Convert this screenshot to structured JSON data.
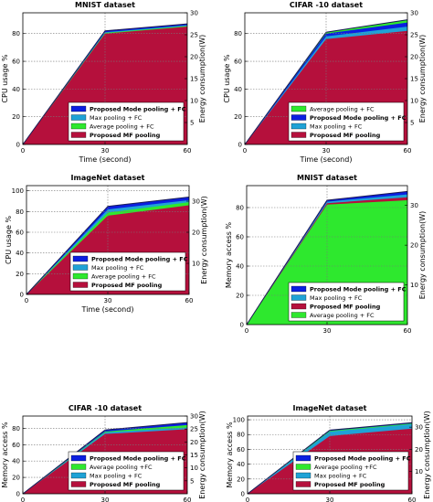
{
  "colors": {
    "proposed_mf": "#b5103c",
    "max_pool": "#1fa2d6",
    "avg_pool": "#2ee82e",
    "proposed_mode": "#0b1fe0",
    "outline": "#1a1a55"
  },
  "chart_data": [
    {
      "type": "area",
      "title": "MNIST dataset",
      "xlabel": "Time (second)",
      "ylabel": "CPU usage %",
      "y2label": "Energy consumption(W)",
      "x": [
        0,
        30,
        60
      ],
      "xticks": [
        "0",
        "30",
        "60"
      ],
      "ylim": [
        0,
        95
      ],
      "yticks": [
        0,
        20,
        40,
        60,
        80
      ],
      "y2lim": [
        0,
        30
      ],
      "y2ticks": [
        5,
        10,
        15,
        20,
        25,
        30
      ],
      "grid": true,
      "legend_position": "lower-right",
      "legend": [
        {
          "label": "Proposed Mode pooling + FC",
          "color": "proposed_mode",
          "bold": true
        },
        {
          "label": "Max pooling + FC",
          "color": "max_pool",
          "bold": false
        },
        {
          "label": "Average pooling + FC",
          "color": "avg_pool",
          "bold": false
        },
        {
          "label": "Proposed MF pooling",
          "color": "proposed_mf",
          "bold": true
        }
      ],
      "series": [
        {
          "name": "Proposed Mode pooling + FC",
          "color": "proposed_mode",
          "values": [
            0,
            82,
            87
          ]
        },
        {
          "name": "Max pooling + FC",
          "color": "max_pool",
          "values": [
            0,
            81,
            86
          ]
        },
        {
          "name": "Average pooling + FC",
          "color": "avg_pool",
          "values": [
            0,
            80.5,
            85.5
          ]
        },
        {
          "name": "Proposed MF pooling",
          "color": "proposed_mf",
          "values": [
            0,
            80,
            85
          ]
        }
      ]
    },
    {
      "type": "area",
      "title": "CIFAR -10 dataset",
      "xlabel": "Time (second)",
      "ylabel": "CPU usage %",
      "y2label": "Energy consumption(W)",
      "x": [
        0,
        30,
        60
      ],
      "xticks": [
        "0",
        "30",
        "60"
      ],
      "ylim": [
        0,
        95
      ],
      "yticks": [
        0,
        20,
        40,
        60,
        80
      ],
      "y2lim": [
        0,
        30
      ],
      "y2ticks": [
        5,
        10,
        15,
        20,
        25,
        30
      ],
      "grid": true,
      "legend_position": "lower-right",
      "legend": [
        {
          "label": "Average pooling + FC",
          "color": "avg_pool",
          "bold": false
        },
        {
          "label": "Proposed Mode pooling + FC",
          "color": "proposed_mode",
          "bold": true
        },
        {
          "label": "Max pooling + FC",
          "color": "max_pool",
          "bold": false
        },
        {
          "label": "Proposed MF pooling",
          "color": "proposed_mf",
          "bold": true
        }
      ],
      "series": [
        {
          "name": "Average pooling + FC",
          "color": "avg_pool",
          "values": [
            0,
            81,
            90
          ]
        },
        {
          "name": "Proposed Mode pooling + FC",
          "color": "proposed_mode",
          "values": [
            0,
            80,
            88
          ]
        },
        {
          "name": "Max pooling + FC",
          "color": "max_pool",
          "values": [
            0,
            78,
            85
          ]
        },
        {
          "name": "Proposed MF pooling",
          "color": "proposed_mf",
          "values": [
            0,
            76,
            82
          ]
        }
      ]
    },
    {
      "type": "area",
      "title": "ImageNet dataset",
      "xlabel": "Time (second)",
      "ylabel": "CPU usage %",
      "y2label": "Energy consumption(W)",
      "x": [
        0,
        30,
        60
      ],
      "xticks": [
        "0",
        "30",
        "60"
      ],
      "ylim": [
        0,
        105
      ],
      "yticks": [
        0,
        20,
        40,
        60,
        80,
        100
      ],
      "y2lim": [
        0,
        35
      ],
      "y2ticks": [
        10,
        20,
        30
      ],
      "grid": true,
      "legend_position": "lower-right",
      "legend": [
        {
          "label": "Proposed Mode pooling + FC",
          "color": "proposed_mode",
          "bold": true
        },
        {
          "label": "Max pooling + FC",
          "color": "max_pool",
          "bold": false
        },
        {
          "label": "Average pooling + FC",
          "color": "avg_pool",
          "bold": false
        },
        {
          "label": "Proposed MF pooling",
          "color": "proposed_mf",
          "bold": true
        }
      ],
      "series": [
        {
          "name": "Proposed Mode pooling + FC",
          "color": "proposed_mode",
          "values": [
            0,
            85,
            94
          ]
        },
        {
          "name": "Max pooling + FC",
          "color": "max_pool",
          "values": [
            0,
            82,
            91
          ]
        },
        {
          "name": "Average pooling + FC",
          "color": "avg_pool",
          "values": [
            0,
            79,
            89
          ]
        },
        {
          "name": "Proposed MF pooling",
          "color": "proposed_mf",
          "values": [
            0,
            76,
            86
          ]
        }
      ]
    },
    {
      "type": "area",
      "title": "MNIST dataset",
      "xlabel": "",
      "ylabel": "Memory access %",
      "y2label": "Energy consumption(W)",
      "x": [
        0,
        30,
        60
      ],
      "xticks": [
        "0",
        "30",
        "60"
      ],
      "ylim": [
        0,
        95
      ],
      "yticks": [
        0,
        20,
        40,
        60,
        80
      ],
      "y2lim": [
        0,
        35
      ],
      "y2ticks": [
        10,
        20,
        30
      ],
      "grid": true,
      "legend_position": "lower-right",
      "legend": [
        {
          "label": "Proposed Mode pooling + FC",
          "color": "proposed_mode",
          "bold": true
        },
        {
          "label": "Max pooling + FC",
          "color": "max_pool",
          "bold": false
        },
        {
          "label": "Proposed MF pooling",
          "color": "proposed_mf",
          "bold": true
        },
        {
          "label": "Average pooling + FC",
          "color": "avg_pool",
          "bold": false
        }
      ],
      "series": [
        {
          "name": "Proposed Mode pooling + FC",
          "color": "proposed_mode",
          "values": [
            0,
            85,
            91
          ]
        },
        {
          "name": "Max pooling + FC",
          "color": "max_pool",
          "values": [
            0,
            84,
            89
          ]
        },
        {
          "name": "Proposed MF pooling",
          "color": "proposed_mf",
          "values": [
            0,
            83,
            87
          ]
        },
        {
          "name": "Average pooling + FC",
          "color": "avg_pool",
          "values": [
            0,
            82,
            85
          ]
        }
      ]
    },
    {
      "type": "area",
      "title": "CIFAR -10 dataset",
      "xlabel": "",
      "ylabel": "Memory access %",
      "y2label": "Energy consumption(W)",
      "x": [
        0,
        30,
        60
      ],
      "xticks": [
        "0",
        "30",
        "60"
      ],
      "ylim": [
        0,
        95
      ],
      "yticks": [
        0,
        20,
        40,
        60,
        80
      ],
      "y2lim": [
        0,
        30
      ],
      "y2ticks": [
        5,
        10,
        15,
        20,
        25,
        30
      ],
      "grid": true,
      "legend_position": "lower-right",
      "legend": [
        {
          "label": "Proposed Mode pooling + FC",
          "color": "proposed_mode",
          "bold": true
        },
        {
          "label": "Average pooling +FC",
          "color": "avg_pool",
          "bold": false
        },
        {
          "label": "Max pooling + FC",
          "color": "max_pool",
          "bold": false
        },
        {
          "label": "Proposed MF pooling",
          "color": "proposed_mf",
          "bold": true
        }
      ],
      "series": [
        {
          "name": "Proposed Mode pooling + FC",
          "color": "proposed_mode",
          "values": [
            0,
            78,
            87
          ]
        },
        {
          "name": "Average pooling +FC",
          "color": "avg_pool",
          "values": [
            0,
            76,
            84
          ]
        },
        {
          "name": "Max pooling + FC",
          "color": "max_pool",
          "values": [
            0,
            75,
            81
          ]
        },
        {
          "name": "Proposed MF pooling",
          "color": "proposed_mf",
          "values": [
            0,
            73,
            79
          ]
        }
      ]
    },
    {
      "type": "area",
      "title": "ImageNet dataset",
      "xlabel": "",
      "ylabel": "Memory access %",
      "y2label": "Energy consumption(W)",
      "x": [
        0,
        30,
        60
      ],
      "xticks": [
        "0",
        "30",
        "60"
      ],
      "ylim": [
        0,
        105
      ],
      "yticks": [
        0,
        20,
        40,
        60,
        80,
        100
      ],
      "y2lim": [
        0,
        35
      ],
      "y2ticks": [
        10,
        20,
        30
      ],
      "grid": true,
      "legend_position": "lower-right",
      "legend": [
        {
          "label": "Proposed Mode pooling + FC",
          "color": "proposed_mode",
          "bold": true
        },
        {
          "label": "Average pooling +FC",
          "color": "avg_pool",
          "bold": false
        },
        {
          "label": "Max pooling + FC",
          "color": "max_pool",
          "bold": false
        },
        {
          "label": "Proposed MF pooling",
          "color": "proposed_mf",
          "bold": true
        }
      ],
      "series": [
        {
          "name": "Proposed Mode pooling + FC",
          "color": "proposed_mode",
          "values": [
            0,
            86,
            96
          ]
        },
        {
          "name": "Average pooling +FC",
          "color": "avg_pool",
          "values": [
            0,
            85,
            95
          ]
        },
        {
          "name": "Max pooling + FC",
          "color": "max_pool",
          "values": [
            0,
            84,
            94
          ]
        },
        {
          "name": "Proposed MF pooling",
          "color": "proposed_mf",
          "values": [
            0,
            78,
            88
          ]
        }
      ]
    }
  ]
}
